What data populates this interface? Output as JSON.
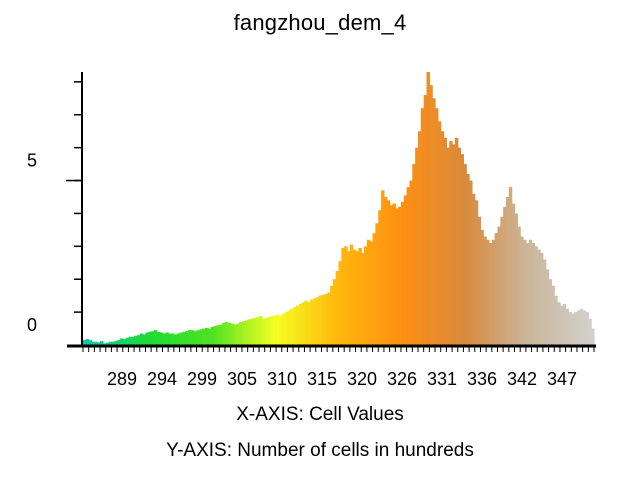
{
  "chart_data": {
    "type": "bar",
    "title": "fangzhou_dem_4",
    "xlabel": "X-AXIS: Cell Values",
    "ylabel": "Y-AXIS: Number of cells in hundreds",
    "x_range": [
      284,
      352
    ],
    "ylim": [
      0,
      8.3
    ],
    "x_ticks": [
      "289",
      "294",
      "299",
      "305",
      "310",
      "315",
      "320",
      "326",
      "331",
      "336",
      "342",
      "347"
    ],
    "y_ticks": [
      "0",
      "5"
    ],
    "grid": false,
    "color_ramp": [
      "#12c7a8",
      "#1ddb34",
      "#4ee222",
      "#f4ff22",
      "#ffb70d",
      "#ff8f12",
      "#d88a3e",
      "#cbb79c",
      "#d2d0cc"
    ],
    "series": [
      {
        "values": [
          0.15,
          0.18,
          0.15,
          0.1,
          0.1,
          0.08,
          0.12,
          0.05,
          0.07,
          0.1,
          0.1,
          0.12,
          0.15,
          0.2,
          0.18,
          0.22,
          0.25,
          0.25,
          0.28,
          0.3,
          0.35,
          0.32,
          0.38,
          0.4,
          0.42,
          0.45,
          0.4,
          0.38,
          0.35,
          0.38,
          0.35,
          0.35,
          0.32,
          0.35,
          0.38,
          0.4,
          0.42,
          0.45,
          0.45,
          0.42,
          0.45,
          0.48,
          0.5,
          0.52,
          0.5,
          0.55,
          0.58,
          0.6,
          0.62,
          0.68,
          0.7,
          0.68,
          0.65,
          0.62,
          0.65,
          0.7,
          0.72,
          0.75,
          0.78,
          0.8,
          0.82,
          0.85,
          0.88,
          0.8,
          0.82,
          0.85,
          0.88,
          0.9,
          0.92,
          0.88,
          0.95,
          1.0,
          1.05,
          1.1,
          1.15,
          1.2,
          1.25,
          1.3,
          1.35,
          1.3,
          1.38,
          1.42,
          1.45,
          1.5,
          1.52,
          1.55,
          1.6,
          1.8,
          2.0,
          2.25,
          2.55,
          2.95,
          3.0,
          2.85,
          3.05,
          2.9,
          2.85,
          2.95,
          2.8,
          3.0,
          3.2,
          3.15,
          3.4,
          3.7,
          4.1,
          4.7,
          4.5,
          4.4,
          4.25,
          4.3,
          4.15,
          4.2,
          4.35,
          4.55,
          4.8,
          5.0,
          5.5,
          6.0,
          6.5,
          7.2,
          7.6,
          8.3,
          7.9,
          7.5,
          7.2,
          6.8,
          6.5,
          6.3,
          6.0,
          6.2,
          6.1,
          6.3,
          6.0,
          5.8,
          5.5,
          5.2,
          5.0,
          4.6,
          4.4,
          3.9,
          3.5,
          3.3,
          3.2,
          3.1,
          3.2,
          3.4,
          3.6,
          3.9,
          4.2,
          4.5,
          4.8,
          4.3,
          4.0,
          3.6,
          3.3,
          3.2,
          3.1,
          3.2,
          3.1,
          3.0,
          2.9,
          2.8,
          2.6,
          2.3,
          2.0,
          1.8,
          1.5,
          1.3,
          1.2,
          1.25,
          1.1,
          1.0,
          0.95,
          1.0,
          1.05,
          1.1,
          1.05,
          1.0,
          0.8,
          0.5
        ]
      }
    ]
  }
}
